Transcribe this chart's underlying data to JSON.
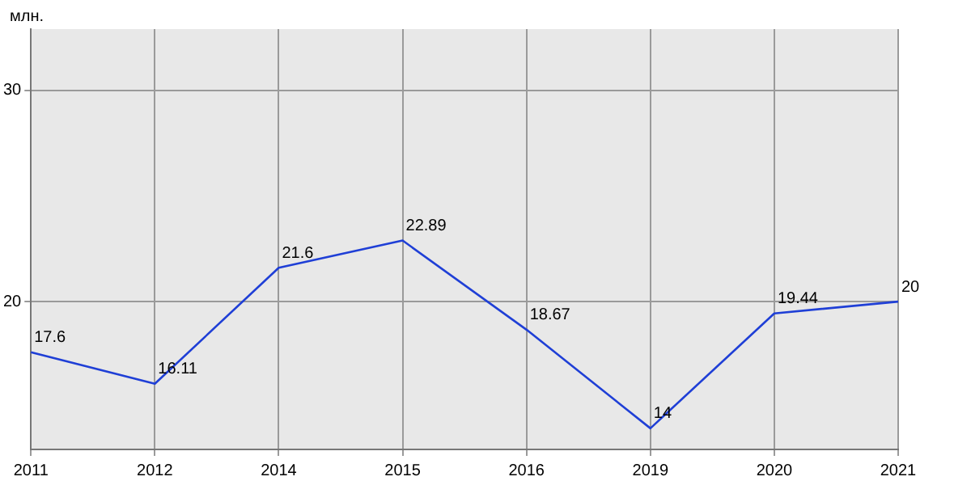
{
  "chart_data": {
    "type": "line",
    "ylabel": "млн.",
    "categories": [
      "2011",
      "2012",
      "2014",
      "2015",
      "2016",
      "2019",
      "2020",
      "2021"
    ],
    "series": [
      {
        "color": "#1f3fd6",
        "values": [
          17.6,
          16.11,
          21.6,
          22.89,
          18.67,
          14,
          19.44,
          20
        ]
      }
    ],
    "ylim": [
      13,
      32.9
    ],
    "yticks": [
      20,
      30
    ],
    "grid": true,
    "legend": false,
    "marker": "none",
    "line_style": "solid",
    "data_labels": true
  }
}
